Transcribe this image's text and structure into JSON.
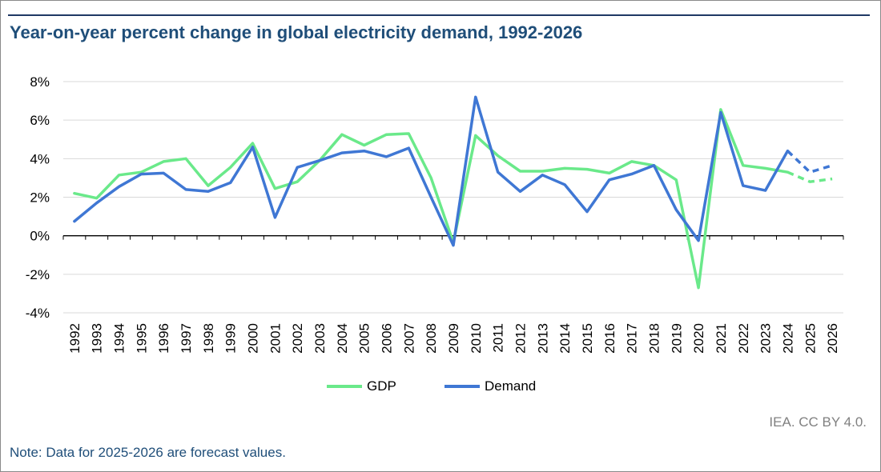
{
  "title": "Year-on-year percent change in global electricity demand, 1992-2026",
  "source": "IEA. CC BY 4.0.",
  "note": "Note: Data for 2025-2026 are forecast values.",
  "chart_data": {
    "type": "line",
    "title": "Year-on-year percent change in global electricity demand, 1992-2026",
    "xlabel": "",
    "ylabel": "",
    "categories": [
      "1992",
      "1993",
      "1994",
      "1995",
      "1996",
      "1997",
      "1998",
      "1999",
      "2000",
      "2001",
      "2002",
      "2003",
      "2004",
      "2005",
      "2006",
      "2007",
      "2008",
      "2009",
      "2010",
      "2011",
      "2012",
      "2013",
      "2014",
      "2015",
      "2016",
      "2017",
      "2018",
      "2019",
      "2020",
      "2021",
      "2022",
      "2023",
      "2024",
      "2025",
      "2026"
    ],
    "ylim": [
      -4,
      8
    ],
    "yticks": [
      -4,
      -2,
      0,
      2,
      4,
      6,
      8
    ],
    "ytick_labels": [
      "-4%",
      "-2%",
      "0%",
      "2%",
      "4%",
      "6%",
      "8%"
    ],
    "grid": true,
    "legend_position": "bottom",
    "forecast_start": "2024",
    "series": [
      {
        "name": "GDP",
        "color": "#6ae98a",
        "values": [
          2.2,
          1.95,
          3.15,
          3.3,
          3.85,
          4.0,
          2.6,
          3.55,
          4.8,
          2.45,
          2.8,
          3.9,
          5.25,
          4.7,
          5.25,
          5.3,
          3.0,
          -0.35,
          5.2,
          4.15,
          3.35,
          3.35,
          3.5,
          3.45,
          3.25,
          3.85,
          3.65,
          2.9,
          -2.7,
          6.55,
          3.65,
          3.5,
          3.3,
          2.8,
          2.95
        ]
      },
      {
        "name": "Demand",
        "color": "#3f77d4",
        "values": [
          0.75,
          1.7,
          2.55,
          3.2,
          3.25,
          2.4,
          2.3,
          2.75,
          4.6,
          0.95,
          3.55,
          3.9,
          4.3,
          4.4,
          4.1,
          4.55,
          2.0,
          -0.5,
          7.2,
          3.3,
          2.3,
          3.15,
          2.65,
          1.25,
          2.9,
          3.2,
          3.65,
          1.35,
          -0.25,
          6.4,
          2.6,
          2.35,
          4.4,
          3.3,
          3.65
        ]
      }
    ]
  }
}
